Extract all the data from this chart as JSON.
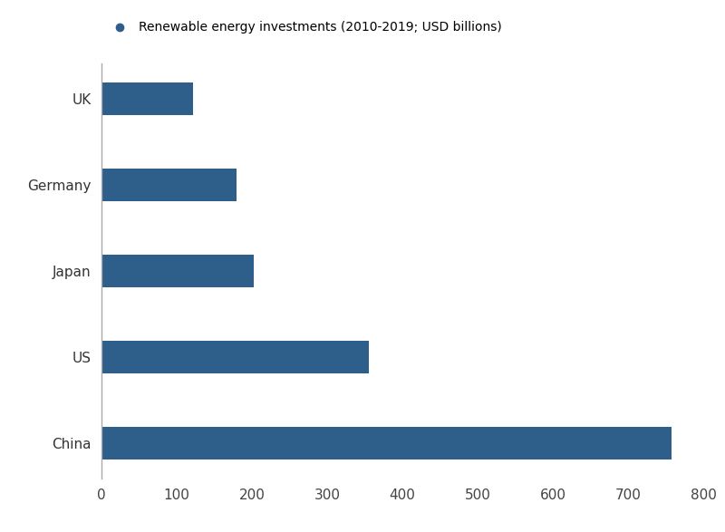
{
  "categories": [
    "China",
    "US",
    "Japan",
    "Germany",
    "UK"
  ],
  "values": [
    758,
    356,
    202,
    179,
    122
  ],
  "bar_color": "#2e5f8a",
  "background_color": "#ffffff",
  "xlim": [
    0,
    800
  ],
  "xticks": [
    0,
    100,
    200,
    300,
    400,
    500,
    600,
    700,
    800
  ],
  "legend_label": "Renewable energy investments (2010-2019; USD billions)",
  "legend_marker_color": "#2e5f8a",
  "bar_height": 0.38,
  "tick_fontsize": 11,
  "label_fontsize": 11,
  "legend_fontsize": 10,
  "spine_color": "#aaaaaa"
}
